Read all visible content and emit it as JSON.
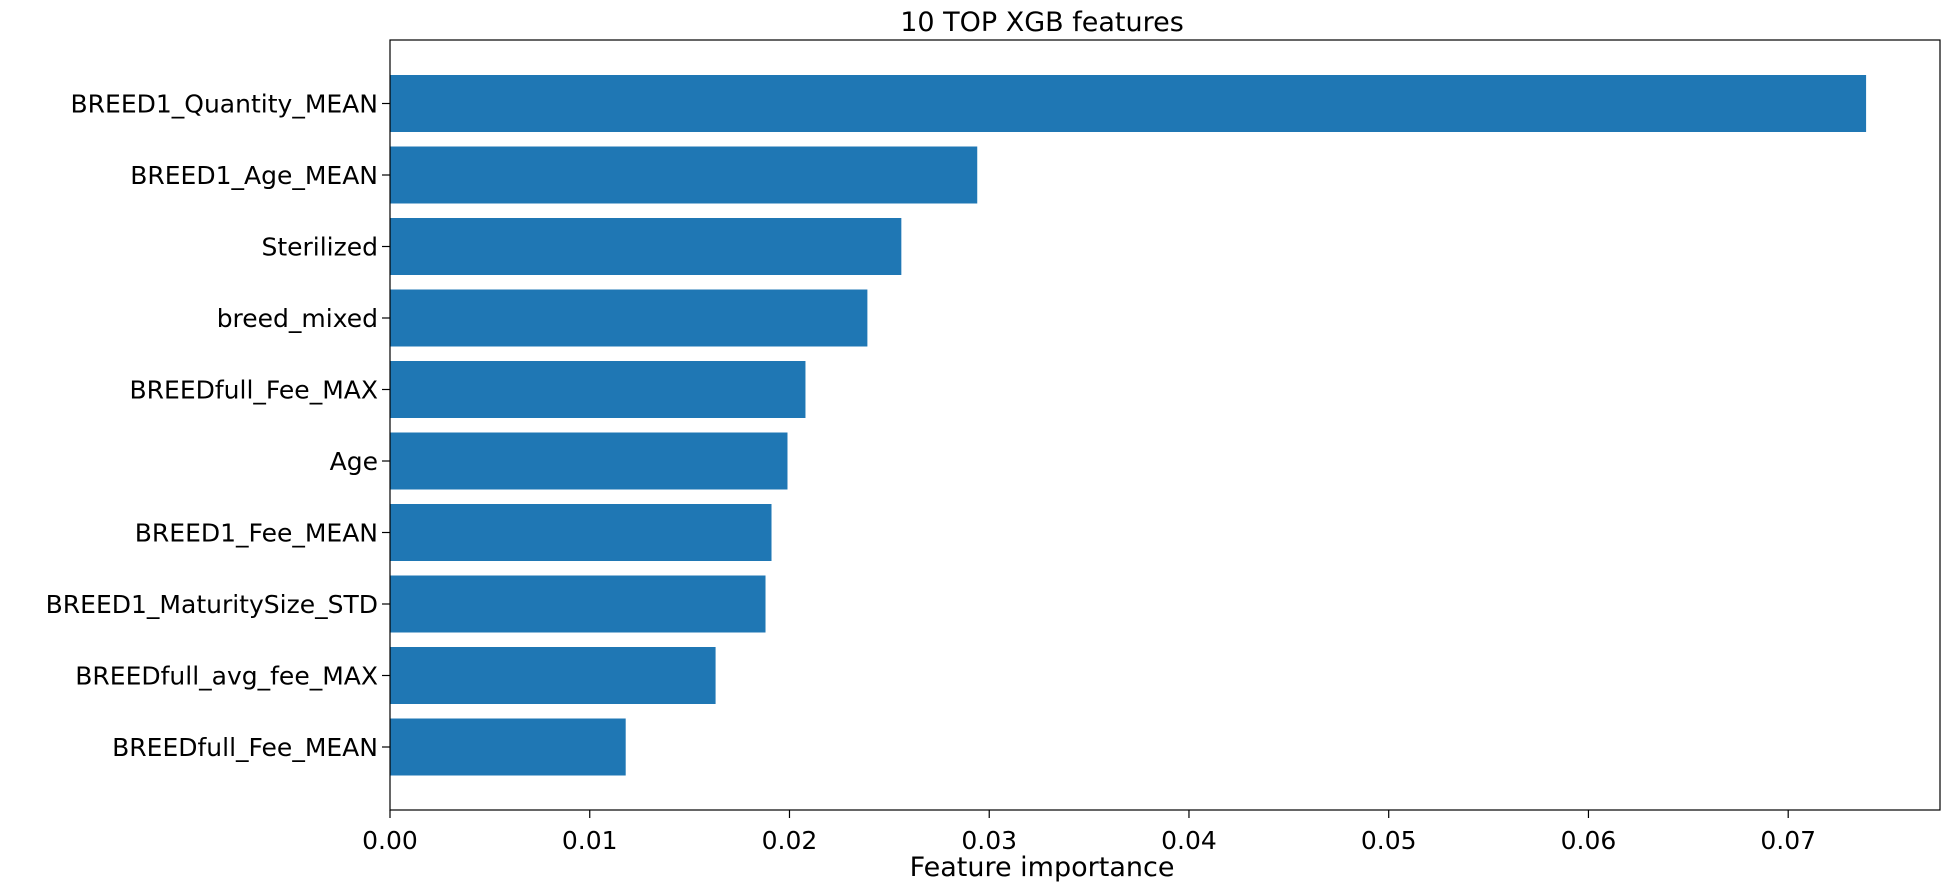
{
  "chart_data": {
    "type": "bar",
    "orientation": "horizontal",
    "title": "10 TOP XGB features",
    "xlabel": "Feature importance",
    "ylabel": "",
    "categories": [
      "BREED1_Quantity_MEAN",
      "BREED1_Age_MEAN",
      "Sterilized",
      "breed_mixed",
      "BREEDfull_Fee_MAX",
      "Age",
      "BREED1_Fee_MEAN",
      "BREED1_MaturitySize_STD",
      "BREEDfull_avg_fee_MAX",
      "BREEDfull_Fee_MEAN"
    ],
    "values": [
      0.0739,
      0.0294,
      0.0256,
      0.0239,
      0.0208,
      0.0199,
      0.0191,
      0.0188,
      0.0163,
      0.0118
    ],
    "xlim": [
      0,
      0.0776
    ],
    "xticks": [
      0,
      0.01,
      0.02,
      0.03,
      0.04,
      0.05,
      0.06,
      0.07
    ],
    "xtick_labels": [
      "0.00",
      "0.01",
      "0.02",
      "0.03",
      "0.04",
      "0.05",
      "0.06",
      "0.07"
    ],
    "bar_color": "#1f77b4",
    "grid": false,
    "legend": "none"
  }
}
